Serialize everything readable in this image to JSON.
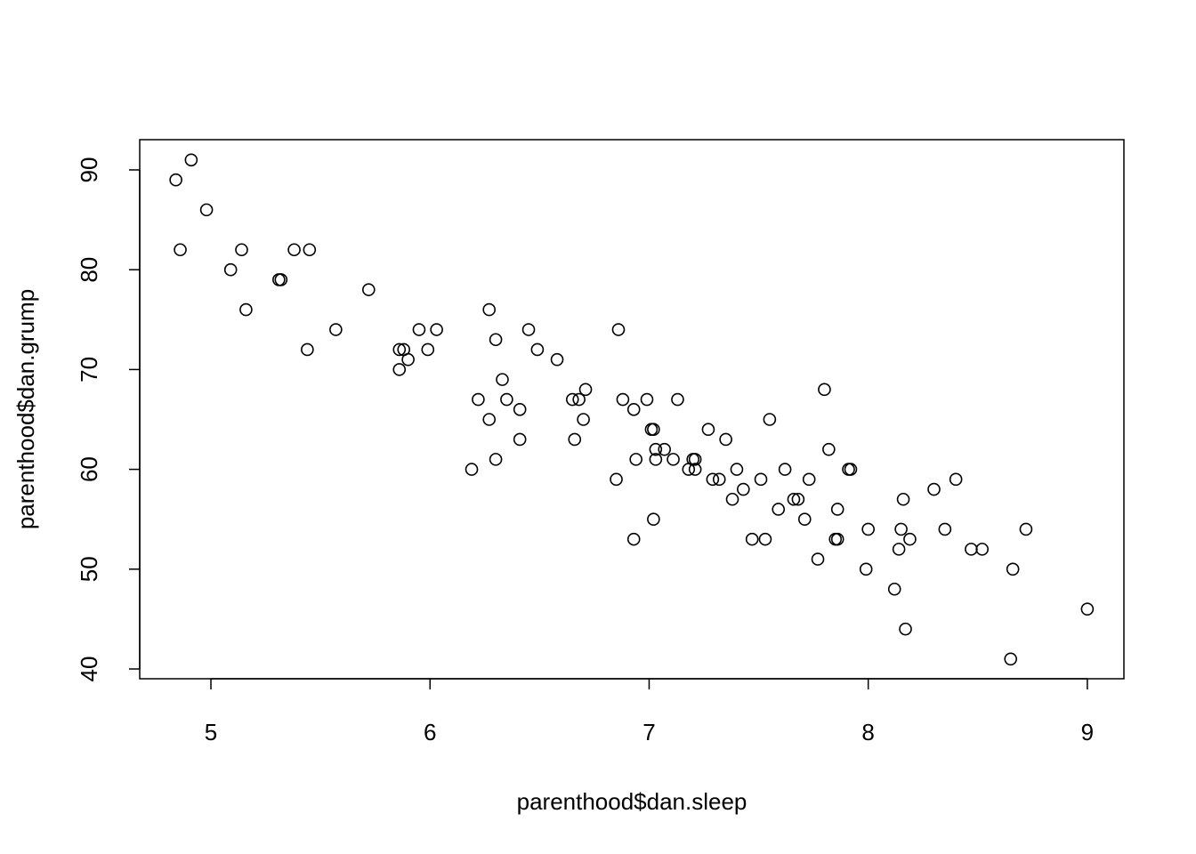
{
  "chart_data": {
    "type": "scatter",
    "x_label": "parenthood$dan.sleep",
    "y_label": "parenthood$dan.grump",
    "color": "#000000",
    "xlim": [
      4.675,
      9.167
    ],
    "ylim": [
      39.02,
      93.03
    ],
    "xticks": [
      5,
      6,
      7,
      8,
      9
    ],
    "yticks": [
      40,
      50,
      60,
      70,
      80,
      90
    ],
    "x": [
      4.84,
      4.91,
      4.98,
      4.86,
      5.14,
      5.09,
      5.16,
      5.31,
      5.32,
      5.38,
      5.45,
      5.44,
      5.57,
      5.72,
      5.86,
      5.88,
      5.86,
      5.9,
      5.95,
      5.99,
      6.03,
      6.19,
      6.22,
      6.27,
      6.27,
      6.3,
      6.3,
      6.33,
      6.35,
      6.41,
      6.41,
      6.45,
      6.49,
      6.58,
      6.65,
      6.66,
      6.68,
      6.7,
      6.71,
      6.85,
      6.86,
      6.88,
      6.93,
      6.93,
      6.94,
      6.99,
      7.01,
      7.02,
      7.02,
      7.03,
      7.03,
      7.07,
      7.11,
      7.13,
      7.18,
      7.2,
      7.21,
      7.21,
      7.27,
      7.29,
      7.32,
      7.35,
      7.38,
      7.4,
      7.43,
      7.47,
      7.51,
      7.53,
      7.55,
      7.59,
      7.62,
      7.66,
      7.68,
      7.71,
      7.73,
      7.77,
      7.8,
      7.82,
      7.85,
      7.86,
      7.86,
      7.91,
      7.92,
      7.99,
      8.0,
      8.12,
      8.14,
      8.15,
      8.16,
      8.17,
      8.19,
      8.3,
      8.35,
      8.4,
      8.47,
      8.52,
      8.65,
      8.66,
      8.72,
      9.0
    ],
    "values": [
      89,
      91,
      86,
      82,
      82,
      80,
      76,
      79,
      79,
      82,
      82,
      72,
      74,
      78,
      72,
      72,
      70,
      71,
      74,
      72,
      74,
      60,
      67,
      76,
      65,
      73,
      61,
      69,
      67,
      66,
      63,
      74,
      72,
      71,
      67,
      63,
      67,
      65,
      68,
      59,
      74,
      67,
      66,
      53,
      61,
      67,
      64,
      64,
      55,
      62,
      61,
      62,
      61,
      67,
      60,
      61,
      61,
      60,
      64,
      59,
      59,
      63,
      57,
      60,
      58,
      53,
      59,
      53,
      65,
      56,
      60,
      57,
      57,
      55,
      59,
      51,
      68,
      62,
      53,
      53,
      56,
      60,
      60,
      50,
      54,
      48,
      52,
      54,
      57,
      44,
      53,
      58,
      54,
      59,
      52,
      52,
      41,
      50,
      54,
      46
    ]
  }
}
